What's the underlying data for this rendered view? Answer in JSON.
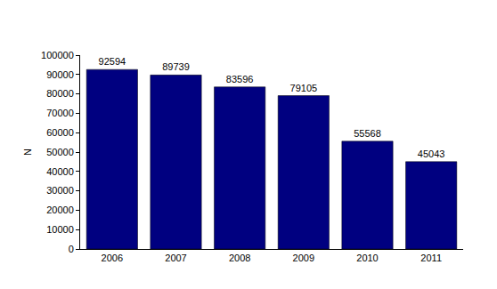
{
  "chart_data": {
    "type": "bar",
    "categories": [
      "2006",
      "2007",
      "2008",
      "2009",
      "2010",
      "2011"
    ],
    "values": [
      92594,
      89739,
      83596,
      79105,
      55568,
      45043
    ],
    "color": "#000080",
    "ylabel": "N",
    "ylim": [
      0,
      100000
    ],
    "yticks": [
      0,
      10000,
      20000,
      30000,
      40000,
      50000,
      60000,
      70000,
      80000,
      90000,
      100000
    ],
    "grid": false,
    "data_labels": true
  }
}
